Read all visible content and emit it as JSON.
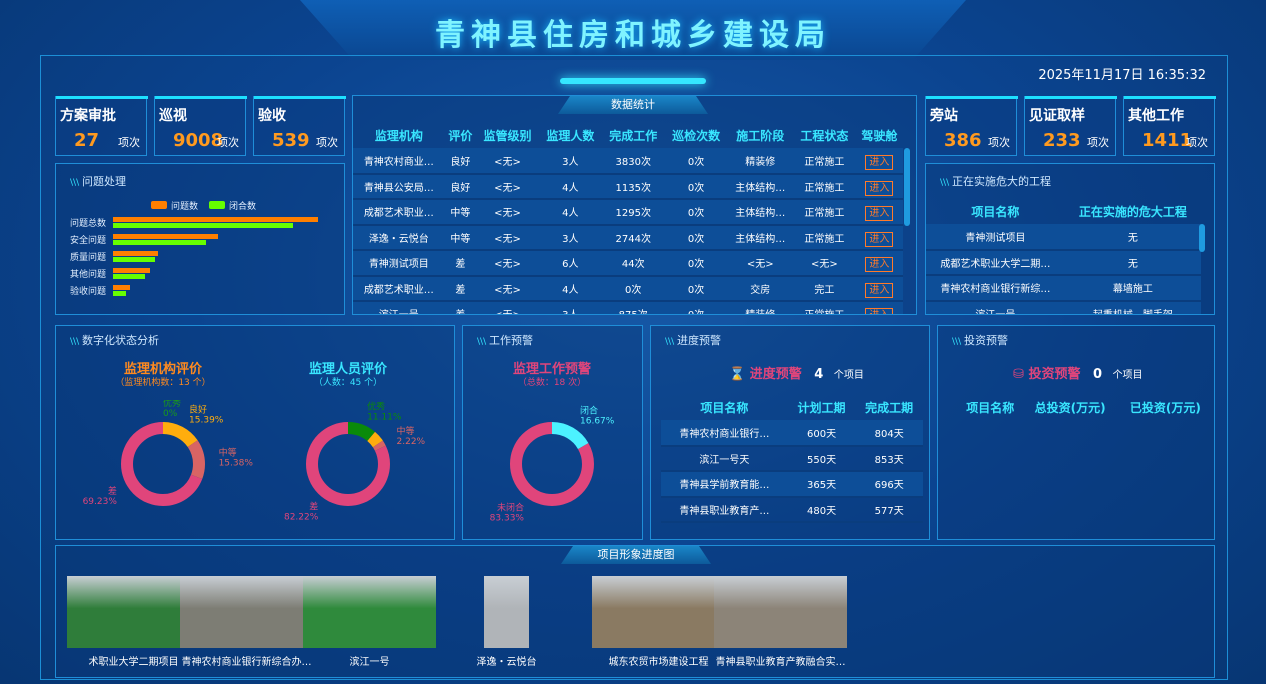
{
  "header": {
    "title": "青神县住房和城乡建设局",
    "datetime": "2025年11月17日 16:35:32"
  },
  "top_left_cards": [
    {
      "label": "方案审批",
      "value": "27",
      "unit": "项次"
    },
    {
      "label": "巡视",
      "value": "9008",
      "unit": "项次"
    },
    {
      "label": "验收",
      "value": "539",
      "unit": "项次"
    }
  ],
  "top_right_cards": [
    {
      "label": "旁站",
      "value": "386",
      "unit": "项次"
    },
    {
      "label": "见证取样",
      "value": "233",
      "unit": "项次"
    },
    {
      "label": "其他工作",
      "value": "1411",
      "unit": "项次"
    }
  ],
  "issues": {
    "title": "问题处理",
    "chart_data": {
      "type": "bar",
      "orientation": "horizontal",
      "categories": [
        "问题总数",
        "安全问题",
        "质量问题",
        "其他问题",
        "验收问题"
      ],
      "series": [
        {
          "name": "问题数",
          "color": "#ff7f00",
          "values": [
            205,
            105,
            45,
            37,
            17
          ]
        },
        {
          "name": "闭合数",
          "color": "#66ff00",
          "values": [
            180,
            93,
            42,
            32,
            13
          ]
        }
      ]
    }
  },
  "stats": {
    "title": "数据统计",
    "columns": [
      "监理机构",
      "评价",
      "监管级别",
      "监理人数",
      "完成工作",
      "巡检次数",
      "施工阶段",
      "工程状态",
      "驾驶舱"
    ],
    "rows": [
      [
        "青神农村商业…",
        "良好",
        "<无>",
        "3人",
        "3830次",
        "0次",
        "精装修",
        "正常施工",
        "进入"
      ],
      [
        "青神县公安局…",
        "良好",
        "<无>",
        "4人",
        "1135次",
        "0次",
        "主体结构…",
        "正常施工",
        "进入"
      ],
      [
        "成都艺术职业…",
        "中等",
        "<无>",
        "4人",
        "1295次",
        "0次",
        "主体结构…",
        "正常施工",
        "进入"
      ],
      [
        "泽逸・云悦台",
        "中等",
        "<无>",
        "3人",
        "2744次",
        "0次",
        "主体结构…",
        "正常施工",
        "进入"
      ],
      [
        "青神测试项目",
        "差",
        "<无>",
        "6人",
        "44次",
        "0次",
        "<无>",
        "<无>",
        "进入"
      ],
      [
        "成都艺术职业…",
        "差",
        "<无>",
        "4人",
        "0次",
        "0次",
        "交房",
        "完工",
        "进入"
      ],
      [
        "滨江一号",
        "差",
        "<无>",
        "3人",
        "875次",
        "0次",
        "精装修",
        "正常施工",
        "进入"
      ]
    ]
  },
  "danger": {
    "title": "正在实施危大的工程",
    "columns": [
      "项目名称",
      "正在实施的危大工程"
    ],
    "rows": [
      [
        "青神测试项目",
        "无"
      ],
      [
        "成都艺术职业大学二期…",
        "无"
      ],
      [
        "青神农村商业银行新综…",
        "幕墙施工"
      ],
      [
        "滨江一号",
        "起重机械、脚手架"
      ]
    ]
  },
  "digital": {
    "title": "数字化状态分析"
  },
  "warn": {
    "title": "工作预警"
  },
  "chart_data": [
    {
      "type": "pie",
      "donut": true,
      "title": "监理机构评价",
      "subtitle": "（监理机构数：13 个）",
      "title_color": "#ff8a1f",
      "slices": [
        {
          "name": "优秀",
          "value": 0,
          "label": "0%",
          "color": "#1a9a1a"
        },
        {
          "name": "良好",
          "value": 15.39,
          "label": "15.39%",
          "color": "#ffad0d"
        },
        {
          "name": "中等",
          "value": 15.38,
          "label": "15.38%",
          "color": "#d86464"
        },
        {
          "name": "差",
          "value": 69.23,
          "label": "69.23%",
          "color": "#e0457b"
        }
      ]
    },
    {
      "type": "pie",
      "donut": true,
      "title": "监理人员评价",
      "subtitle": "（人数：45 个）",
      "title_color": "#39e6ff",
      "slices": [
        {
          "name": "优秀",
          "value": 11.11,
          "label": "11.11%",
          "color": "#0a8a0a"
        },
        {
          "name": "良好",
          "value": 4.45,
          "label": "",
          "color": "#ffad0d"
        },
        {
          "name": "中等",
          "value": 2.22,
          "label": "2.22%",
          "color": "#d86464"
        },
        {
          "name": "差",
          "value": 82.22,
          "label": "82.22%",
          "color": "#e0457b"
        }
      ]
    },
    {
      "type": "pie",
      "donut": true,
      "title": "监理工作预警",
      "subtitle": "（总数：18 次）",
      "title_color": "#e0457b",
      "slices": [
        {
          "name": "闭合",
          "value": 16.67,
          "label": "16.67%",
          "color": "#4cf2ff"
        },
        {
          "name": "未闭合",
          "value": 83.33,
          "label": "83.33%",
          "color": "#e0457b"
        }
      ]
    }
  ],
  "progress": {
    "title": "进度预警",
    "heading": "进度预警",
    "count": "4",
    "unit": "个项目",
    "icon": "hourglass-icon",
    "columns": [
      "项目名称",
      "计划工期",
      "完成工期"
    ],
    "rows": [
      [
        "青神农村商业银行…",
        "600天",
        "804天"
      ],
      [
        "滨江一号天",
        "550天",
        "853天"
      ],
      [
        "青神县学前教育能…",
        "365天",
        "696天"
      ],
      [
        "青神县职业教育产…",
        "480天",
        "577天"
      ]
    ]
  },
  "invest": {
    "title": "投资预警",
    "heading": "投资预警",
    "count": "0",
    "unit": "个项目",
    "icon": "coin-stack-icon",
    "columns": [
      "项目名称",
      "总投资(万元)",
      "已投资(万元)"
    ]
  },
  "gallery": {
    "title": "项目形象进度图",
    "items": [
      "术职业大学二期项目",
      "青神农村商业银行新综合办…",
      "滨江一号",
      "泽逸・云悦台",
      "城东农贸市场建设工程",
      "青神县职业教育产教融合实…"
    ]
  },
  "colors": {
    "accent": "#39e6ff",
    "value": "#ff9a1f",
    "alert": "#e0457b"
  }
}
